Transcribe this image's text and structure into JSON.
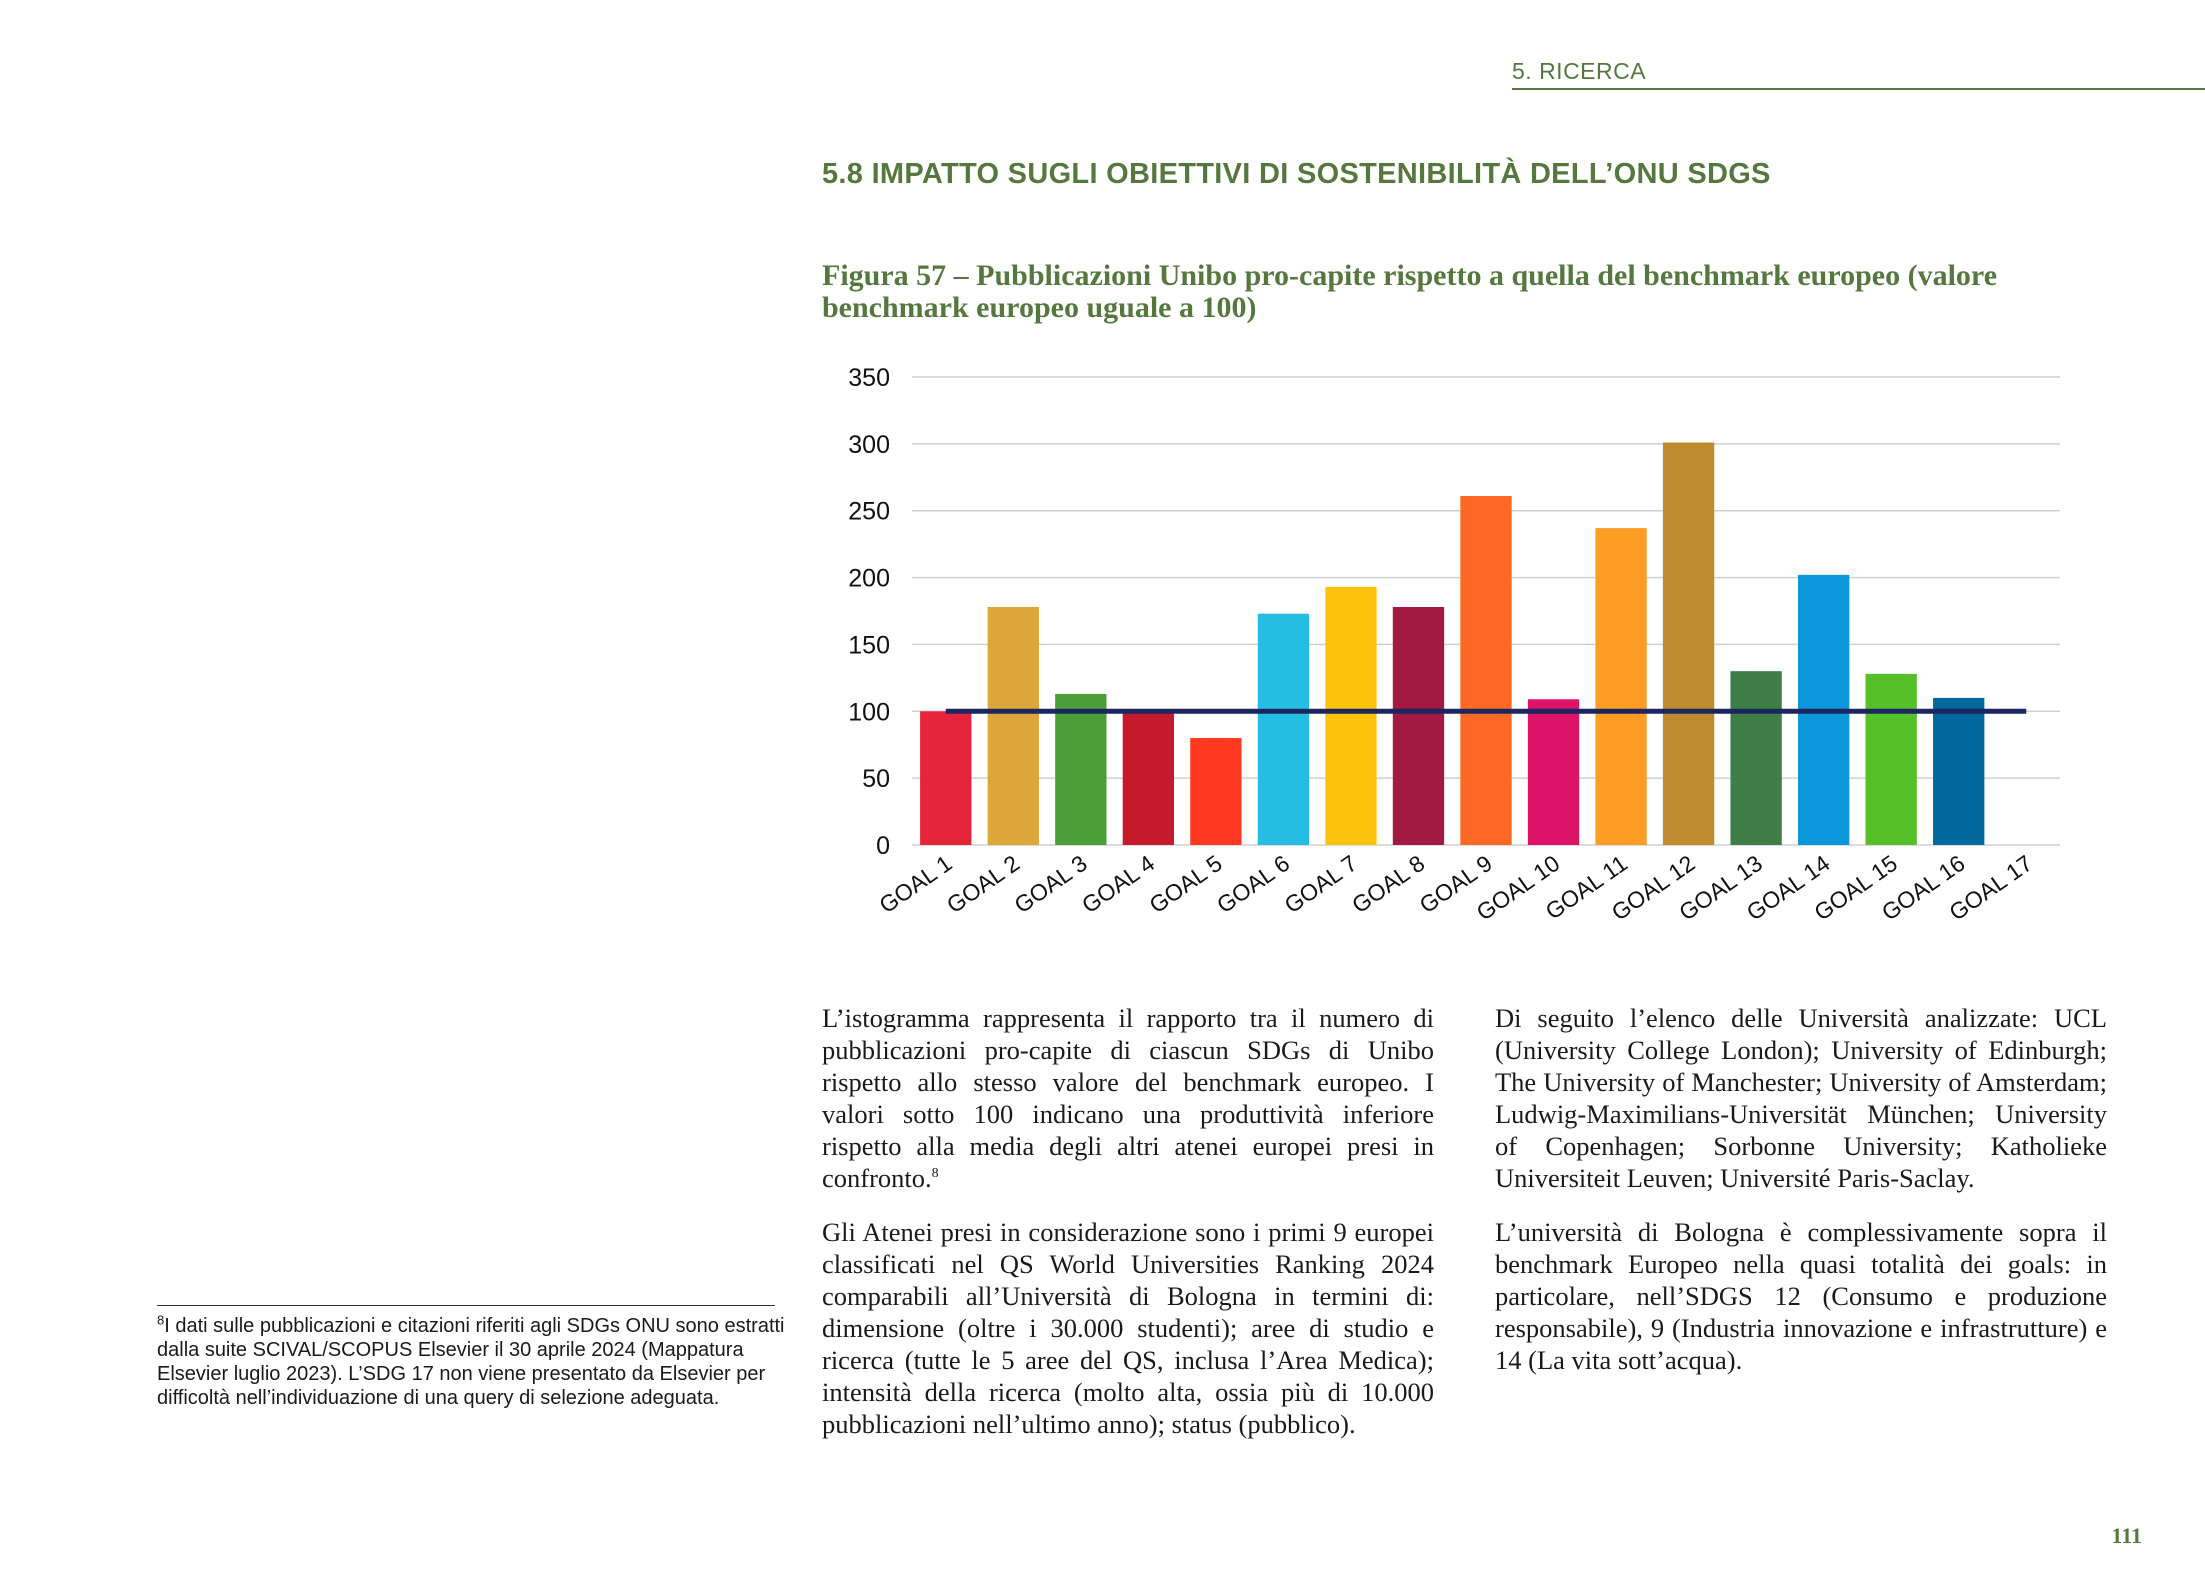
{
  "header": {
    "section": "5. RICERCA"
  },
  "heading": "5.8  IMPATTO SUGLI OBIETTIVI DI SOSTENIBILITÀ DELL’ONU SDGS",
  "figure_caption": "Figura 57 – Pubblicazioni Unibo pro-capite rispetto a quella del benchmark europeo (valore benchmark europeo uguale a 100)",
  "chart_data": {
    "type": "bar",
    "title": "",
    "xlabel": "",
    "ylabel": "",
    "ylim": [
      0,
      350
    ],
    "yticks": [
      "0",
      "50",
      "100",
      "150",
      "200",
      "250",
      "300",
      "350"
    ],
    "grid": true,
    "categories": [
      "GOAL 1",
      "GOAL 2",
      "GOAL 3",
      "GOAL 4",
      "GOAL 5",
      "GOAL 6",
      "GOAL 7",
      "GOAL 8",
      "GOAL 9",
      "GOAL 10",
      "GOAL 11",
      "GOAL 12",
      "GOAL 13",
      "GOAL 14",
      "GOAL 15",
      "GOAL 16",
      "GOAL 17"
    ],
    "values": [
      100,
      178,
      113,
      100,
      80,
      173,
      193,
      178,
      261,
      109,
      237,
      301,
      130,
      202,
      128,
      110,
      null
    ],
    "colors": [
      "#e5243b",
      "#dda63a",
      "#4c9f38",
      "#c5192d",
      "#ff3a21",
      "#26bde2",
      "#fcc30b",
      "#a21942",
      "#fd6925",
      "#dd1367",
      "#fd9d24",
      "#bf8b2e",
      "#3f7e44",
      "#0a97d9",
      "#56c02b",
      "#00689d",
      "#19486a"
    ],
    "reference_line": {
      "value": 100,
      "color": "#1b2660"
    }
  },
  "body": {
    "left": {
      "p1": "L’istogramma rappresenta il rapporto tra il numero di pubblicazioni pro-capite di ciascun SDGs di Unibo rispetto allo stesso valore del benchmark europeo. I valori sotto 100 indicano una produttività inferiore rispetto alla media degli altri atenei europei presi in confronto.",
      "p1_note": "8",
      "p2": "Gli Atenei presi in considerazione sono i primi 9 europei classificati nel QS World Universities Ranking 2024 comparabili all’Università di Bologna in termini di: dimensione (oltre i 30.000 studenti); aree di studio e ricerca (tutte le 5 aree del QS, inclusa l’Area Medica); intensità della ricerca (molto alta, ossia più di 10.000 pubblicazioni nell’ultimo anno); status (pubblico)."
    },
    "right": {
      "p1": "Di seguito l’elenco delle Università analizzate: UCL (University College London); University of Edinburgh; The University of Manchester; University of Amsterdam; Ludwig-Maximilians-Universität München; University of Copenhagen; Sorbonne University; Katholieke Universiteit Leuven; Université Paris-Saclay.",
      "p2": "L’università di Bologna è complessivamente sopra il benchmark Europeo nella quasi totalità dei goals: in particolare, nell’SDGS 12 (Consumo e produzione responsabile), 9 (Industria innovazione e infrastrutture) e 14 (La vita sott’acqua)."
    }
  },
  "footnote": {
    "mark": "8",
    "text": "I dati sulle pubblicazioni e citazioni riferiti agli SDGs ONU sono estratti dalla suite SCIVAL/SCOPUS Elsevier il 30 aprile 2024 (Mappatura Elsevier luglio 2023). L’SDG 17 non viene presentato da Elsevier per difficoltà nell’individuazione di una query di selezione adeguata."
  },
  "page_number": "111"
}
